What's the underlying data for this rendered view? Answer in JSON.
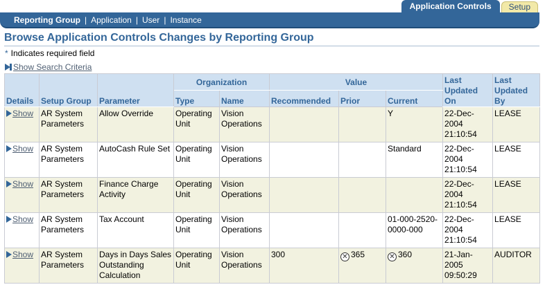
{
  "top_tabs": [
    {
      "label": "Application Controls",
      "active": true
    },
    {
      "label": "Setup",
      "active": false
    }
  ],
  "nav": {
    "items": [
      "Reporting Group",
      "Application",
      "User",
      "Instance"
    ],
    "selected": "Reporting Group"
  },
  "page": {
    "title": "Browse Application Controls Changes by Reporting Group",
    "required_note": "Indicates required field",
    "required_star": "*",
    "show_criteria": "Show Search Criteria"
  },
  "table": {
    "headers": {
      "details": "Details",
      "setup_group": "Setup Group",
      "parameter": "Parameter",
      "organization": "Organization",
      "org_type": "Type",
      "org_name": "Name",
      "value": "Value",
      "recommended": "Recommended",
      "prior": "Prior",
      "current": "Current",
      "last_updated_on": "Last Updated On",
      "last_updated_by": "Last Updated By"
    },
    "show_label": "Show",
    "rows": [
      {
        "setup_group": "AR System Parameters",
        "parameter": "Allow Override",
        "org_type": "Operating Unit",
        "org_name": "Vision Operations",
        "recommended": "",
        "prior": "",
        "current": "Y",
        "updated_on": "22-Dec-2004 21:10:54",
        "updated_by": "LEASE"
      },
      {
        "setup_group": "AR System Parameters",
        "parameter": "AutoCash Rule Set",
        "org_type": "Operating Unit",
        "org_name": "Vision Operations",
        "recommended": "",
        "prior": "",
        "current": "Standard",
        "updated_on": "22-Dec-2004 21:10:54",
        "updated_by": "LEASE"
      },
      {
        "setup_group": "AR System Parameters",
        "parameter": "Finance Charge Activity",
        "org_type": "Operating Unit",
        "org_name": "Vision Operations",
        "recommended": "",
        "prior": "",
        "current": "",
        "updated_on": "22-Dec-2004 21:10:54",
        "updated_by": "LEASE"
      },
      {
        "setup_group": "AR System Parameters",
        "parameter": "Tax Account",
        "org_type": "Operating Unit",
        "org_name": "Vision Operations",
        "recommended": "",
        "prior": "",
        "current": "01-000-2520-0000-000",
        "updated_on": "22-Dec-2004 21:10:54",
        "updated_by": "LEASE"
      },
      {
        "setup_group": "AR System Parameters",
        "parameter": "Days in Days Sales Outstanding Calculation",
        "org_type": "Operating Unit",
        "org_name": "Vision Operations",
        "recommended": "300",
        "prior": "365",
        "current": "360",
        "updated_on": "21-Jan-2005 09:50:29",
        "updated_by": "AUDITOR",
        "prior_flag": "x-circle-icon",
        "current_flag": "x-circle-icon"
      }
    ]
  }
}
